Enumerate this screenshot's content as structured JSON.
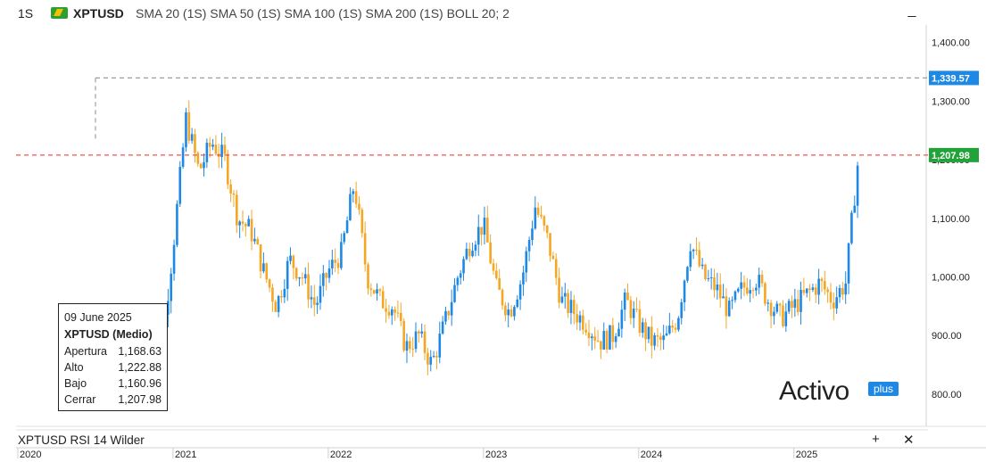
{
  "header": {
    "interval": "1S",
    "symbol": "XPTUSD",
    "indicators": "SMA 20 (1S)  SMA 50 (1S)  SMA 100 (1S)  SMA 200 (1S)  BOLL 20; 2",
    "minimize_label": "_"
  },
  "chart_data": {
    "type": "candlestick",
    "symbol": "XPTUSD",
    "ylim": [
      745,
      1430
    ],
    "y_ticks": [
      800,
      900,
      1000,
      1100,
      1200,
      1300,
      1400
    ],
    "y_tick_labels": [
      "800.00",
      "900.00",
      "1,000.00",
      "1,100.00",
      "1,200.00",
      "1,300.00",
      "1,400.00"
    ],
    "x_ticks": [
      "2020",
      "2021",
      "2022",
      "2023",
      "2024",
      "2025"
    ],
    "up_color": "#1e88e5",
    "down_color": "#f5a623",
    "reference_lines": [
      {
        "value": 1339.57,
        "label": "1,339.57",
        "color": "#9e9e9e",
        "tag_color": "#1e88e5"
      },
      {
        "value": 1207.98,
        "label": "1,207.98",
        "color": "#ef5350",
        "tag_color": "#22a33a"
      }
    ],
    "price_series": [
      {
        "date": "2020-11",
        "close": 900
      },
      {
        "date": "2020-12",
        "close": 860
      },
      {
        "date": "2021-01",
        "close": 1050
      },
      {
        "date": "2021-02",
        "close": 1270
      },
      {
        "date": "2021-03",
        "close": 1180
      },
      {
        "date": "2021-04",
        "close": 1230
      },
      {
        "date": "2021-05",
        "close": 1200
      },
      {
        "date": "2021-06",
        "close": 1100
      },
      {
        "date": "2021-07",
        "close": 1080
      },
      {
        "date": "2021-08",
        "close": 1010
      },
      {
        "date": "2021-09",
        "close": 950
      },
      {
        "date": "2021-10",
        "close": 1030
      },
      {
        "date": "2021-11",
        "close": 1000
      },
      {
        "date": "2021-12",
        "close": 950
      },
      {
        "date": "2022-01",
        "close": 1010
      },
      {
        "date": "2022-02",
        "close": 1040
      },
      {
        "date": "2022-03",
        "close": 1160
      },
      {
        "date": "2022-04",
        "close": 1000
      },
      {
        "date": "2022-05",
        "close": 960
      },
      {
        "date": "2022-06",
        "close": 950
      },
      {
        "date": "2022-07",
        "close": 880
      },
      {
        "date": "2022-08",
        "close": 900
      },
      {
        "date": "2022-09",
        "close": 850
      },
      {
        "date": "2022-10",
        "close": 920
      },
      {
        "date": "2022-11",
        "close": 1000
      },
      {
        "date": "2022-12",
        "close": 1060
      },
      {
        "date": "2023-01",
        "close": 1090
      },
      {
        "date": "2023-02",
        "close": 980
      },
      {
        "date": "2023-03",
        "close": 940
      },
      {
        "date": "2023-04",
        "close": 1000
      },
      {
        "date": "2023-05",
        "close": 1120
      },
      {
        "date": "2023-06",
        "close": 1060
      },
      {
        "date": "2023-07",
        "close": 960
      },
      {
        "date": "2023-08",
        "close": 940
      },
      {
        "date": "2023-09",
        "close": 920
      },
      {
        "date": "2023-10",
        "close": 890
      },
      {
        "date": "2023-11",
        "close": 900
      },
      {
        "date": "2023-12",
        "close": 960
      },
      {
        "date": "2024-01",
        "close": 920
      },
      {
        "date": "2024-02",
        "close": 890
      },
      {
        "date": "2024-03",
        "close": 890
      },
      {
        "date": "2024-04",
        "close": 930
      },
      {
        "date": "2024-05",
        "close": 1060
      },
      {
        "date": "2024-06",
        "close": 1000
      },
      {
        "date": "2024-07",
        "close": 980
      },
      {
        "date": "2024-08",
        "close": 940
      },
      {
        "date": "2024-09",
        "close": 980
      },
      {
        "date": "2024-10",
        "close": 1000
      },
      {
        "date": "2024-11",
        "close": 960
      },
      {
        "date": "2024-12",
        "close": 930
      },
      {
        "date": "2025-01",
        "close": 950
      },
      {
        "date": "2025-02",
        "close": 970
      },
      {
        "date": "2025-03",
        "close": 990
      },
      {
        "date": "2025-04",
        "close": 960
      },
      {
        "date": "2025-05",
        "close": 990
      },
      {
        "date": "2025-06",
        "close": 1207.98
      }
    ]
  },
  "tooltip": {
    "date": "09 June 2025",
    "title": "XPTUSD (Medio)",
    "rows": [
      {
        "label": "Apertura",
        "value": "1,168.63"
      },
      {
        "label": "Alto",
        "value": "1,222.88"
      },
      {
        "label": "Bajo",
        "value": "1,160.96"
      },
      {
        "label": "Cerrar",
        "value": "1,207.98"
      }
    ]
  },
  "logo": {
    "text": "Activo",
    "badge": "plus"
  },
  "rsi_panel": {
    "label": "XPTUSD  RSI 14 Wilder",
    "plus": "+",
    "close": "✕"
  }
}
